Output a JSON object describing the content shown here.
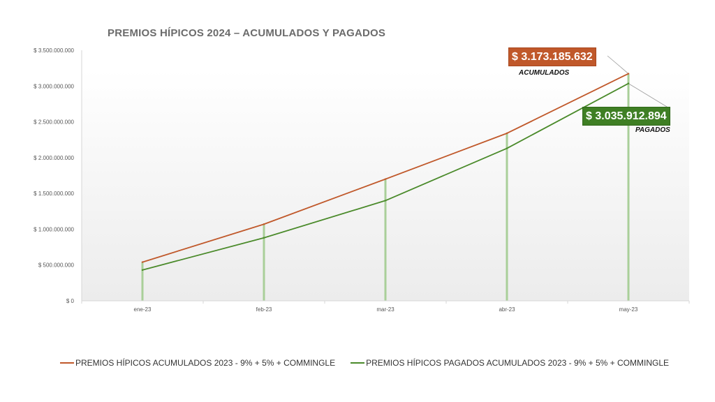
{
  "chart_data": {
    "type": "line",
    "title": "PREMIOS  HÍPICOS  2024 – ACUMULADOS  Y PAGADOS",
    "categories": [
      "ene-23",
      "feb-23",
      "mar-23",
      "abr-23",
      "may-23"
    ],
    "y_ticks": [
      "$ 0",
      "$ 500.000.000",
      "$ 1.000.000.000",
      "$ 1.500.000.000",
      "$ 2.000.000.000",
      "$ 2.500.000.000",
      "$ 3.000.000.000",
      "$ 3.500.000.000"
    ],
    "ylim": [
      0,
      3500000000
    ],
    "series": [
      {
        "name": "PREMIOS HÍPICOS ACUMULADOS 2023 - 9% + 5% + COMMINGLE",
        "color": "#c0582a",
        "values": [
          540000000,
          1070000000,
          1700000000,
          2340000000,
          3173185632
        ]
      },
      {
        "name": "PREMIOS HÍPICOS PAGADOS ACUMULADOS 2023 - 9% + 5% + COMMINGLE",
        "color": "#4a8a2a",
        "values": [
          430000000,
          880000000,
          1400000000,
          2130000000,
          3035912894
        ]
      }
    ],
    "callouts": {
      "acumulados_value": "$ 3.173.185.632",
      "acumulados_label": "ACUMULADOS",
      "pagados_value": "$ 3.035.912.894",
      "pagados_label": "PAGADOS"
    },
    "drop_line_color": "#a9cf99",
    "grid": false,
    "legend_position": "bottom"
  }
}
